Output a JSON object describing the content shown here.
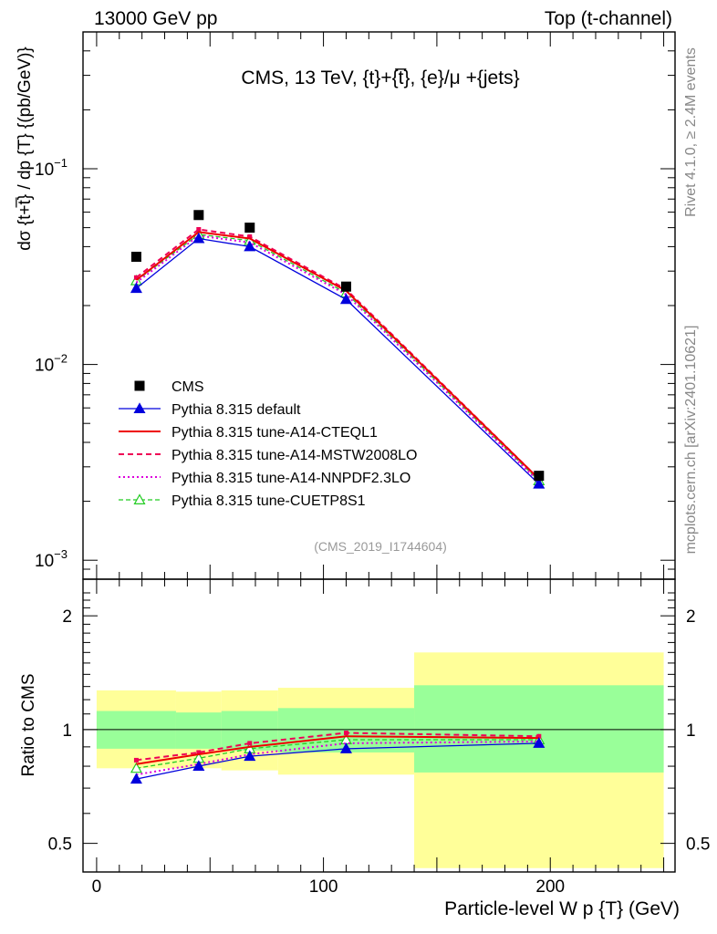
{
  "header": {
    "left": "13000 GeV pp",
    "right": "Top (t-channel)"
  },
  "side_labels": {
    "rivet": "Rivet 4.1.0, ≥ 2.4M events",
    "mcplots": "mcplots.cern.ch [arXiv:2401.10621]"
  },
  "analysis_id": "(CMS_2019_I1744604)",
  "colors": {
    "band_outer": "#ffff99",
    "band_inner": "#99ff99",
    "default": "#0000dd",
    "cteql1": "#ee0000",
    "mstw": "#ee0055",
    "nnpdf": "#dd00dd",
    "cuetp8s1": "#22cc22",
    "muted": "#888888"
  },
  "chart_data": [
    {
      "type": "scatter",
      "panel": "main",
      "title": "CMS, 13 TeV, {t}+{t̅}, {e}/μ +{jets}",
      "ylabel": "dσ {t+t̅} / dp {T}  {(pb/GeV)}",
      "yscale": "log",
      "ylim": [
        0.0008,
        0.5
      ],
      "xlim": [
        -6,
        255
      ],
      "x": [
        17.5,
        45,
        67.5,
        110,
        195
      ],
      "series": [
        {
          "name": "CMS",
          "marker": "square",
          "values": [
            0.0355,
            0.058,
            0.05,
            0.025,
            0.0027
          ]
        },
        {
          "name": "Pythia 8.315 default",
          "style": "solid-triangle",
          "values": [
            0.0245,
            0.044,
            0.04,
            0.0215,
            0.00245
          ]
        },
        {
          "name": "Pythia 8.315 tune-A14-CTEQL1",
          "style": "solid",
          "values": [
            0.027,
            0.0475,
            0.044,
            0.0238,
            0.0026
          ]
        },
        {
          "name": "Pythia 8.315 tune-A14-MSTW2008LO",
          "style": "dashed",
          "values": [
            0.0278,
            0.049,
            0.045,
            0.0242,
            0.0026
          ]
        },
        {
          "name": "Pythia 8.315 tune-A14-NNPDF2.3LO",
          "style": "dotted",
          "values": [
            0.0262,
            0.0455,
            0.042,
            0.0228,
            0.00252
          ]
        },
        {
          "name": "Pythia 8.315 tune-CUETP8S1",
          "style": "dashed-open-triangle",
          "values": [
            0.0268,
            0.0462,
            0.043,
            0.0232,
            0.00255
          ]
        }
      ],
      "yticks": [
        {
          "value": 0.1,
          "base": "10",
          "exp": "−1"
        },
        {
          "value": 0.01,
          "base": "10",
          "exp": "−2"
        },
        {
          "value": 0.001,
          "base": "10",
          "exp": "−3"
        }
      ]
    },
    {
      "type": "line",
      "panel": "ratio",
      "ylabel": "Ratio to CMS",
      "xlabel": "Particle-level W p {T} (GeV)",
      "yscale": "log",
      "ylim": [
        0.42,
        2.5
      ],
      "xlim": [
        -6,
        255
      ],
      "x": [
        17.5,
        45,
        67.5,
        110,
        195
      ],
      "bins": [
        {
          "lo": 0,
          "hi": 35,
          "outer": [
            0.79,
            1.27
          ],
          "inner": [
            0.89,
            1.12
          ]
        },
        {
          "lo": 35,
          "hi": 55,
          "outer": [
            0.79,
            1.26
          ],
          "inner": [
            0.89,
            1.11
          ]
        },
        {
          "lo": 55,
          "hi": 80,
          "outer": [
            0.78,
            1.27
          ],
          "inner": [
            0.88,
            1.12
          ]
        },
        {
          "lo": 80,
          "hi": 140,
          "outer": [
            0.76,
            1.29
          ],
          "inner": [
            0.87,
            1.14
          ]
        },
        {
          "lo": 140,
          "hi": 250,
          "outer": [
            0.43,
            1.6
          ],
          "inner": [
            0.77,
            1.31
          ]
        }
      ],
      "series": [
        {
          "name": "Pythia 8.315 default",
          "values": [
            0.74,
            0.8,
            0.85,
            0.89,
            0.92
          ]
        },
        {
          "name": "Pythia 8.315 tune-A14-CTEQL1",
          "values": [
            0.81,
            0.86,
            0.9,
            0.96,
            0.95
          ]
        },
        {
          "name": "Pythia 8.315 tune-A14-MSTW2008LO",
          "values": [
            0.83,
            0.87,
            0.92,
            0.98,
            0.96
          ]
        },
        {
          "name": "Pythia 8.315 tune-A14-NNPDF2.3LO",
          "values": [
            0.76,
            0.81,
            0.86,
            0.92,
            0.93
          ]
        },
        {
          "name": "Pythia 8.315 tune-CUETP8S1",
          "values": [
            0.79,
            0.84,
            0.89,
            0.94,
            0.94
          ]
        }
      ],
      "yticks": [
        {
          "value": 0.5,
          "label": "0.5"
        },
        {
          "value": 1,
          "label": "1"
        },
        {
          "value": 2,
          "label": "2"
        }
      ],
      "xticks": [
        {
          "value": 0,
          "label": "0"
        },
        {
          "value": 100,
          "label": "100"
        },
        {
          "value": 200,
          "label": "200"
        }
      ]
    }
  ]
}
